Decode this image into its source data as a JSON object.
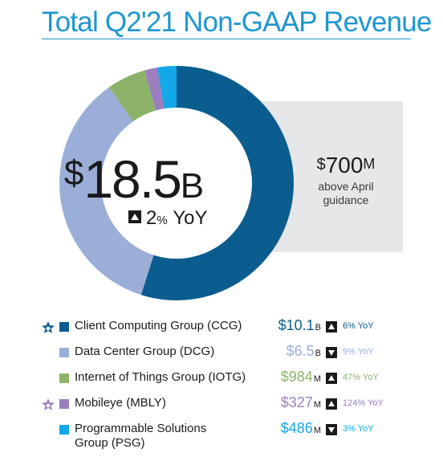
{
  "title": "Total Q2'21 Non-GAAP Revenue",
  "total": {
    "dollar": "$",
    "number": "18.5",
    "unit": "B",
    "yoy_pct": "2",
    "yoy_pct_sign": "%",
    "yoy_label": "YoY",
    "direction": "up"
  },
  "guidance": {
    "dollar": "$",
    "number": "700",
    "unit": "M",
    "line1": "above April",
    "line2": "guidance"
  },
  "legend": [
    {
      "label": "Client Computing Group (CCG)",
      "value_dollar": "$",
      "value_number": "10.1",
      "value_unit": "B",
      "yoy": "6% YoY",
      "direction": "up",
      "star": true
    },
    {
      "label": "Data Center Group (DCG)",
      "value_dollar": "$",
      "value_number": "6.5",
      "value_unit": "B",
      "yoy": "9% YoY",
      "direction": "down",
      "star": false
    },
    {
      "label": "Internet of Things Group (IOTG)",
      "value_dollar": "$",
      "value_number": "984",
      "value_unit": "M",
      "yoy": "47% YoY",
      "direction": "up",
      "star": false
    },
    {
      "label": "Mobileye (MBLY)",
      "value_dollar": "$",
      "value_number": "327",
      "value_unit": "M",
      "yoy": "124% YoY",
      "direction": "up",
      "star": true
    },
    {
      "label": "Programmable Solutions",
      "label2": "Group (PSG)",
      "value_dollar": "$",
      "value_number": "486",
      "value_unit": "M",
      "yoy": "3% YoY",
      "direction": "down",
      "star": false
    }
  ],
  "colors": {
    "title": "#1e96d0",
    "ccg": "#0b5d8f",
    "dcg": "#9aaed8",
    "iotg": "#8cb369",
    "mbly": "#9b7fbf",
    "psg": "#13a8e8",
    "panel": "#e6e7e8"
  },
  "chart_data": {
    "type": "pie",
    "variant": "donut",
    "unit": "$M",
    "categories": [
      "Client Computing Group (CCG)",
      "Data Center Group (DCG)",
      "Internet of Things Group (IOTG)",
      "Mobileye (MBLY)",
      "Programmable Solutions Group (PSG)"
    ],
    "values": [
      10100,
      6500,
      984,
      327,
      486
    ],
    "colors": [
      "#0b5d8f",
      "#9aaed8",
      "#8cb369",
      "#9b7fbf",
      "#13a8e8"
    ],
    "yoy_percent": [
      6,
      -9,
      47,
      124,
      -3
    ]
  }
}
